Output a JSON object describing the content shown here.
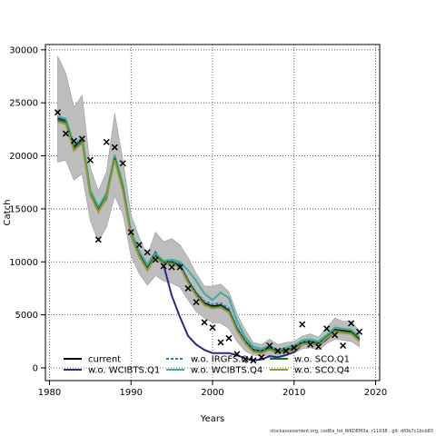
{
  "chart_data": {
    "type": "line",
    "xlabel": "Years",
    "ylabel": "Catch",
    "xlim": [
      1979.5,
      2020.5
    ],
    "ylim": [
      -1200,
      30500
    ],
    "x_ticks": [
      1980,
      1990,
      2000,
      2010,
      2020
    ],
    "y_ticks": [
      0,
      5000,
      10000,
      15000,
      20000,
      25000,
      30000
    ],
    "grid": true,
    "legend_position": "bottom-left",
    "years": [
      1981,
      1982,
      1983,
      1984,
      1985,
      1986,
      1987,
      1988,
      1989,
      1990,
      1991,
      1992,
      1993,
      1994,
      1995,
      1996,
      1997,
      1998,
      1999,
      2000,
      2001,
      2002,
      2003,
      2004,
      2005,
      2006,
      2007,
      2008,
      2009,
      2010,
      2011,
      2012,
      2013,
      2014,
      2015,
      2016,
      2017,
      2018
    ],
    "band_lower": [
      19400,
      19600,
      17700,
      18300,
      13900,
      11900,
      13300,
      16200,
      14500,
      10600,
      8900,
      7800,
      8700,
      8200,
      8000,
      7600,
      6400,
      5300,
      4700,
      4300,
      4200,
      3700,
      2500,
      1600,
      1200,
      1100,
      1200,
      1000,
      1200,
      1400,
      1800,
      1900,
      1700,
      2300,
      2700,
      2600,
      2500,
      2000
    ],
    "band_upper": [
      29400,
      27800,
      24600,
      25700,
      18900,
      16700,
      18500,
      24000,
      19600,
      14500,
      12300,
      10600,
      12800,
      11900,
      12200,
      11600,
      10400,
      8900,
      7700,
      7700,
      7900,
      7200,
      5100,
      3600,
      2400,
      2200,
      2700,
      2200,
      2400,
      2500,
      3000,
      3200,
      2900,
      3800,
      4700,
      4400,
      4400,
      3500
    ],
    "series": [
      {
        "name": "current",
        "color": "#000000",
        "dash": "solid",
        "values": [
          23500,
          23300,
          20800,
          21500,
          16500,
          15000,
          16300,
          19900,
          17000,
          12600,
          10700,
          9400,
          10600,
          10000,
          10000,
          9700,
          8200,
          7000,
          6100,
          5800,
          5900,
          5400,
          3700,
          2500,
          1700,
          1600,
          1900,
          1500,
          1700,
          1900,
          2400,
          2500,
          2300,
          3000,
          3600,
          3500,
          3400,
          2700
        ]
      },
      {
        "name": "w.o. WCIBTS.Q1",
        "color": "#332288",
        "dash": "solid",
        "values": [
          23600,
          23400,
          21000,
          21600,
          16600,
          14800,
          16000,
          20000,
          17100,
          12800,
          11000,
          9700,
          10900,
          9700,
          6800,
          4800,
          3000,
          2200,
          1700,
          1400,
          1400,
          1400,
          1200,
          900,
          700,
          800,
          1100,
          1000,
          1200,
          1500,
          2200,
          2300,
          2100,
          2700,
          3400,
          3300,
          3300,
          2600
        ]
      },
      {
        "name": "w.o. IRGFS.Q4",
        "color": "#3377bb",
        "dash": "dashed",
        "values": [
          23300,
          23100,
          20600,
          21300,
          16300,
          14900,
          16200,
          19700,
          16800,
          12500,
          10600,
          9300,
          10500,
          10000,
          10100,
          9800,
          8300,
          7100,
          6300,
          6000,
          6100,
          5600,
          3800,
          2600,
          1800,
          1600,
          1900,
          1600,
          1700,
          1900,
          2400,
          2500,
          2300,
          3000,
          3500,
          3400,
          3300,
          2600
        ]
      },
      {
        "name": "w.o. WCIBTS.Q4",
        "color": "#44aa99",
        "dash": "solid",
        "values": [
          23700,
          23500,
          21100,
          21700,
          16800,
          15200,
          16500,
          20100,
          17300,
          12900,
          11000,
          9700,
          10800,
          10100,
          10200,
          10000,
          9200,
          8200,
          7000,
          6400,
          7100,
          6600,
          4400,
          2900,
          2000,
          1800,
          2100,
          1700,
          1900,
          2100,
          2600,
          2700,
          2500,
          3100,
          3800,
          3700,
          3600,
          2900
        ]
      },
      {
        "name": "w.o. SCO.Q1",
        "color": "#117733",
        "dash": "solid",
        "values": [
          23400,
          23200,
          20700,
          21400,
          16400,
          14900,
          16200,
          19800,
          16900,
          12500,
          10600,
          9300,
          10500,
          9900,
          9900,
          9600,
          8100,
          6900,
          6000,
          5700,
          5800,
          5300,
          3600,
          2400,
          1600,
          1500,
          1800,
          1500,
          1600,
          1800,
          2300,
          2400,
          2200,
          2900,
          3500,
          3400,
          3300,
          2600
        ]
      },
      {
        "name": "w.o. SCO.Q4",
        "color": "#999933",
        "dash": "solid",
        "values": [
          23200,
          23000,
          20500,
          21200,
          16300,
          14700,
          16100,
          19600,
          16700,
          12400,
          10500,
          9200,
          10400,
          9800,
          9800,
          9500,
          8000,
          6800,
          5900,
          5600,
          5700,
          5200,
          3500,
          2300,
          1500,
          1400,
          1700,
          1400,
          1500,
          1700,
          2200,
          2300,
          2100,
          2800,
          3400,
          3300,
          3200,
          2500
        ]
      }
    ],
    "observed": {
      "marker": "x",
      "x": [
        1981,
        1982,
        1983,
        1984,
        1985,
        1986,
        1987,
        1988,
        1989,
        1990,
        1991,
        1992,
        1993,
        1994,
        1995,
        1996,
        1997,
        1998,
        1999,
        2000,
        2001,
        2002,
        2003,
        2004,
        2005,
        2006,
        2007,
        2008,
        2009,
        2010,
        2011,
        2012,
        2013,
        2014,
        2015,
        2016,
        2017,
        2018
      ],
      "y": [
        24100,
        22100,
        21400,
        21600,
        19600,
        12100,
        21300,
        20800,
        19300,
        12800,
        11600,
        10900,
        10200,
        9600,
        9500,
        9500,
        7500,
        6200,
        4300,
        3800,
        2400,
        2800,
        1300,
        800,
        700,
        1000,
        2100,
        1600,
        1600,
        1900,
        4100,
        2200,
        2000,
        3700,
        3100,
        2100,
        4200,
        3400
      ]
    }
  },
  "footer_text": "stockassessment.org, cod6a_hd_WKDEM3a, r11938 , git: df0b7c1bcb83"
}
